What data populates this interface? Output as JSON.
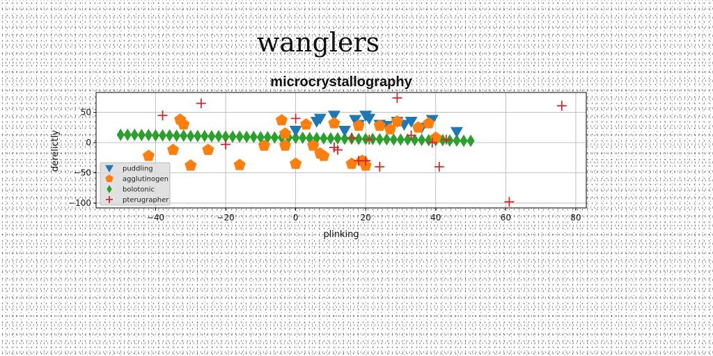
{
  "figure": {
    "suptitle": "wanglers"
  },
  "chart_data": {
    "type": "scatter",
    "title": "microcrystallography",
    "xlabel": "plinking",
    "ylabel": "derelictly",
    "xlim": [
      -57,
      83
    ],
    "ylim": [
      -108,
      83
    ],
    "xticks": [
      -40,
      -20,
      0,
      20,
      40,
      60,
      80
    ],
    "yticks": [
      50,
      0,
      -50,
      -100
    ],
    "xtick_labels": [
      "−40",
      "−20",
      "0",
      "20",
      "40",
      "60",
      "80"
    ],
    "ytick_labels": [
      "50",
      "0",
      "−50",
      "−100"
    ],
    "grid": true,
    "legend_position": "lower-left",
    "series": [
      {
        "name": "puddling",
        "marker": "triangle-down",
        "color": "#1f77b4",
        "x": [
          0,
          6,
          7,
          11,
          14,
          17,
          18,
          20,
          21,
          24,
          26,
          29,
          31,
          33,
          36,
          39,
          46
        ],
        "y": [
          20,
          35,
          40,
          45,
          20,
          38,
          30,
          45,
          40,
          30,
          28,
          35,
          30,
          35,
          25,
          38,
          18
        ]
      },
      {
        "name": "agglutinogen",
        "marker": "pentagon",
        "color": "#ff7f0e",
        "x": [
          -42,
          -35,
          -33,
          -32,
          -30,
          -25,
          -16,
          -9,
          -4,
          -3,
          -3,
          0,
          3,
          5,
          7,
          8,
          11,
          16,
          18,
          19,
          20,
          24,
          27,
          29,
          35,
          38,
          40
        ],
        "y": [
          -22,
          -12,
          38,
          30,
          -38,
          -12,
          -37,
          -5,
          37,
          15,
          -5,
          -35,
          30,
          -5,
          -18,
          -22,
          32,
          -35,
          28,
          -30,
          -38,
          28,
          22,
          35,
          25,
          32,
          8
        ]
      },
      {
        "name": "bolotonic",
        "marker": "diamond",
        "color": "#2ca02c",
        "x": [
          -50,
          -48,
          -46,
          -44,
          -42,
          -40,
          -38,
          -36,
          -34,
          -32,
          -30,
          -28,
          -26,
          -24,
          -22,
          -20,
          -18,
          -16,
          -14,
          -12,
          -10,
          -8,
          -6,
          -4,
          -2,
          0,
          2,
          4,
          6,
          8,
          10,
          12,
          14,
          16,
          18,
          20,
          22,
          24,
          26,
          28,
          30,
          32,
          34,
          36,
          38,
          40,
          42,
          44,
          46,
          48,
          50
        ],
        "y": [
          13,
          13,
          13,
          12.5,
          12.5,
          12,
          12,
          12,
          11.5,
          11.5,
          11,
          11,
          11,
          10.5,
          10.5,
          10,
          10,
          10,
          9.5,
          9.5,
          9,
          9,
          8.5,
          8.5,
          8.5,
          8,
          8,
          7.5,
          7.5,
          7,
          7,
          7,
          6.5,
          6.5,
          6,
          6,
          6,
          5.5,
          5.5,
          5,
          5,
          5,
          4.5,
          4.5,
          4,
          4,
          4,
          3.5,
          3.5,
          3,
          3
        ]
      },
      {
        "name": "pterugrapher",
        "marker": "plus",
        "color": "#d62728",
        "x": [
          -38,
          -27,
          -20,
          0,
          11,
          12,
          16,
          18,
          20,
          21,
          24,
          29,
          33,
          39,
          41,
          43,
          61,
          76
        ],
        "y": [
          45,
          65,
          -3,
          40,
          -8,
          -12,
          8,
          -30,
          -30,
          5,
          -40,
          74,
          12,
          0,
          -40,
          5,
          -98,
          61
        ]
      }
    ]
  }
}
